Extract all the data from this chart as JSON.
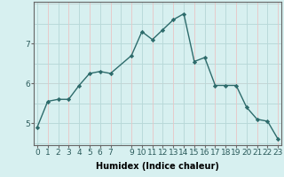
{
  "x": [
    0,
    1,
    2,
    3,
    4,
    5,
    6,
    7,
    9,
    10,
    11,
    12,
    13,
    14,
    15,
    16,
    17,
    18,
    19,
    20,
    21,
    22,
    23
  ],
  "y": [
    4.9,
    5.55,
    5.6,
    5.6,
    5.95,
    6.25,
    6.3,
    6.25,
    6.7,
    7.3,
    7.1,
    7.35,
    7.6,
    7.75,
    6.55,
    6.65,
    5.95,
    5.95,
    5.95,
    5.4,
    5.1,
    5.05,
    4.6
  ],
  "line_color": "#2d6b6b",
  "marker": "D",
  "markersize": 2.2,
  "linewidth": 1.0,
  "bg_color": "#d7f0f0",
  "grid_color": "#b8d8d8",
  "grid_color_red": "#e8c8c8",
  "xlabel": "Humidex (Indice chaleur)",
  "xlabel_fontsize": 7,
  "xlim": [
    -0.3,
    23.3
  ],
  "ylim": [
    4.45,
    8.05
  ],
  "xtick_positions": [
    0,
    1,
    2,
    3,
    4,
    5,
    6,
    7,
    9,
    10,
    11,
    12,
    13,
    14,
    15,
    16,
    17,
    18,
    19,
    20,
    21,
    22,
    23
  ],
  "xtick_labels": [
    "0",
    "1",
    "2",
    "3",
    "4",
    "5",
    "6",
    "7",
    "9",
    "10",
    "11",
    "12",
    "13",
    "14",
    "15",
    "16",
    "17",
    "18",
    "19",
    "20",
    "21",
    "22",
    "23"
  ],
  "ytick_positions": [
    5,
    6,
    7
  ],
  "ytick_labels": [
    "5",
    "6",
    "7"
  ],
  "tick_fontsize": 6.5
}
